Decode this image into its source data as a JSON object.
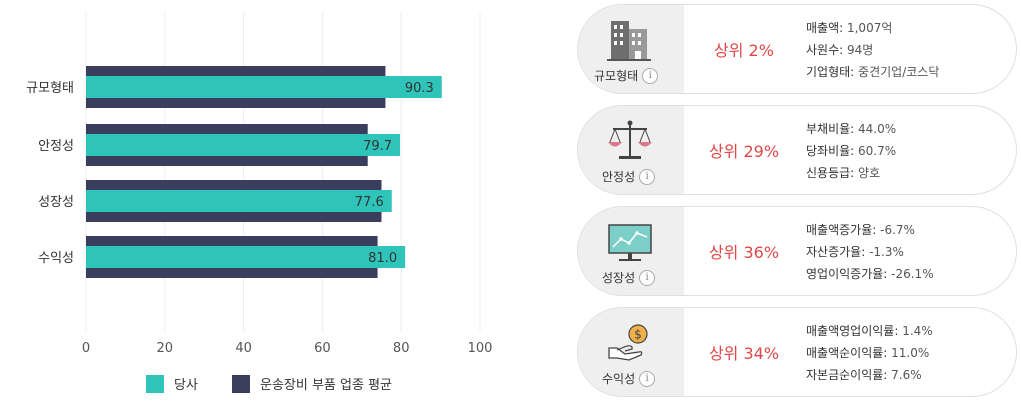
{
  "chart_data": {
    "type": "bar",
    "orientation": "horizontal",
    "categories": [
      "규모형태",
      "안정성",
      "성장성",
      "수익성"
    ],
    "series": [
      {
        "name": "당사",
        "values": [
          90.3,
          79.7,
          77.6,
          81.0
        ],
        "color": "#2ec4b9"
      },
      {
        "name": "운송장비 부품 업종 평균",
        "values": [
          76,
          71.5,
          75,
          74
        ],
        "color": "#383e5c"
      }
    ],
    "data_labels": [
      "90.3",
      "79.7",
      "77.6",
      "81.0"
    ],
    "xlim": [
      0,
      100
    ],
    "xticks": [
      "0",
      "20",
      "40",
      "60",
      "80",
      "100"
    ],
    "grid": true,
    "legend_position": "bottom"
  },
  "cards": [
    {
      "category": "규모형태",
      "icon": "building-icon",
      "rank": "상위 2%",
      "metrics": [
        {
          "label": "매출액: ",
          "value": "1,007억"
        },
        {
          "label": "사원수: ",
          "value": "94명"
        },
        {
          "label": "기업형태: ",
          "value": "중견기업/코스닥"
        }
      ]
    },
    {
      "category": "안정성",
      "icon": "balance-scale-icon",
      "rank": "상위 29%",
      "metrics": [
        {
          "label": "부채비율: ",
          "value": "44.0%"
        },
        {
          "label": "당좌비율: ",
          "value": "60.7%"
        },
        {
          "label": "신용등급: ",
          "value": "양호"
        }
      ]
    },
    {
      "category": "성장성",
      "icon": "growth-monitor-icon",
      "rank": "상위 36%",
      "metrics": [
        {
          "label": "매출액증가율: ",
          "value": "-6.7%"
        },
        {
          "label": "자산증가율: ",
          "value": "-1.3%"
        },
        {
          "label": "영업이익증가율: ",
          "value": "-26.1%"
        }
      ]
    },
    {
      "category": "수익성",
      "icon": "money-hand-icon",
      "rank": "상위 34%",
      "metrics": [
        {
          "label": "매출액영업이익률: ",
          "value": "1.4%"
        },
        {
          "label": "매출액순이익률: ",
          "value": "11.0%"
        },
        {
          "label": "자본금순이익률: ",
          "value": "7.6%"
        }
      ]
    }
  ],
  "info_symbol": "i"
}
